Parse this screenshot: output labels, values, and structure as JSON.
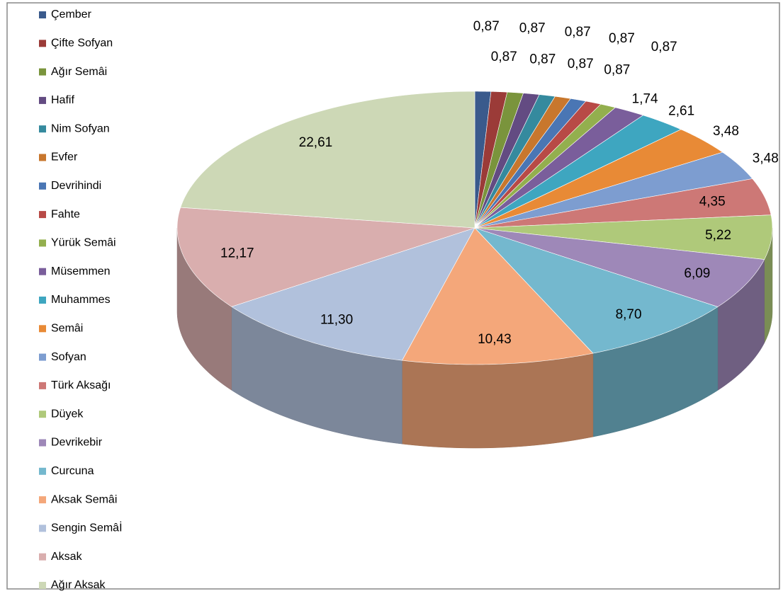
{
  "chart_data": {
    "type": "pie",
    "categories": [
      "Çember",
      "Çifte Sofyan",
      "Ağır Semâi",
      "Hafif",
      "Nim Sofyan",
      "Evfer",
      "Devrihindi",
      "Fahte",
      "Yürük Semâi",
      "Müsemmen",
      "Muhammes",
      "Semâi",
      "Sofyan",
      "Türk Aksağı",
      "Düyek",
      "Devrikebir",
      "Curcuna",
      "Aksak Semâi",
      "Sengin Semâİ",
      "Aksak",
      "Ağır Aksak"
    ],
    "values": [
      0.87,
      0.87,
      0.87,
      0.87,
      0.87,
      0.87,
      0.87,
      0.87,
      0.87,
      1.74,
      2.61,
      3.48,
      3.48,
      4.35,
      5.22,
      6.09,
      8.7,
      10.43,
      11.3,
      12.17,
      22.61
    ],
    "value_labels": [
      "0,87",
      "0,87",
      "0,87",
      "0,87",
      "0,87",
      "0,87",
      "0,87",
      "0,87",
      "0,87",
      "1,74",
      "2,61",
      "3,48",
      "3,48",
      "4,35",
      "5,22",
      "6,09",
      "8,70",
      "10,43",
      "11,30",
      "12,17",
      "22,61"
    ],
    "colors": [
      "#3A5A8C",
      "#9B3B38",
      "#7A943C",
      "#634B82",
      "#358A9E",
      "#C8772D",
      "#4A76B4",
      "#B84A46",
      "#93AF4E",
      "#7A5E9B",
      "#3EA6C0",
      "#E88A36",
      "#7D9DD0",
      "#CD7876",
      "#AFC97A",
      "#9E88B8",
      "#74B8CE",
      "#F4A77A",
      "#B1C1DC",
      "#D9AEAE",
      "#CDD8B6"
    ],
    "legend": "left"
  }
}
